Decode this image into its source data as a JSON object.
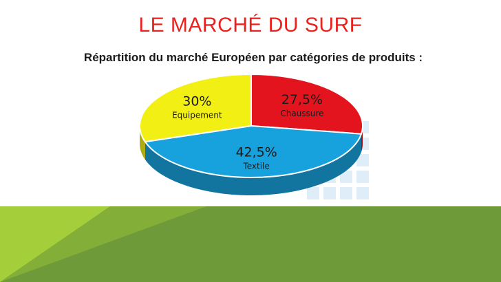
{
  "slide": {
    "title": "LE MARCHÉ DU SURF",
    "subtitle": "Répartition du marché Européen par catégories de produits :"
  },
  "colors": {
    "title": "#e8231f",
    "green_band": "#6f9a3a",
    "green_light": "#a4cf3a",
    "chaussure": "#e4141f",
    "textile": "#17a2dd",
    "equipement": "#f2ef14"
  },
  "chart_data": {
    "type": "pie",
    "style": "3d",
    "slices": [
      {
        "label": "Chaussure",
        "value": 27.5,
        "value_label": "27,5%",
        "color": "#e4141f"
      },
      {
        "label": "Textile",
        "value": 42.5,
        "value_label": "42,5%",
        "color": "#17a2dd"
      },
      {
        "label": "Equipement",
        "value": 30,
        "value_label": "30%",
        "color": "#f2ef14"
      }
    ]
  }
}
